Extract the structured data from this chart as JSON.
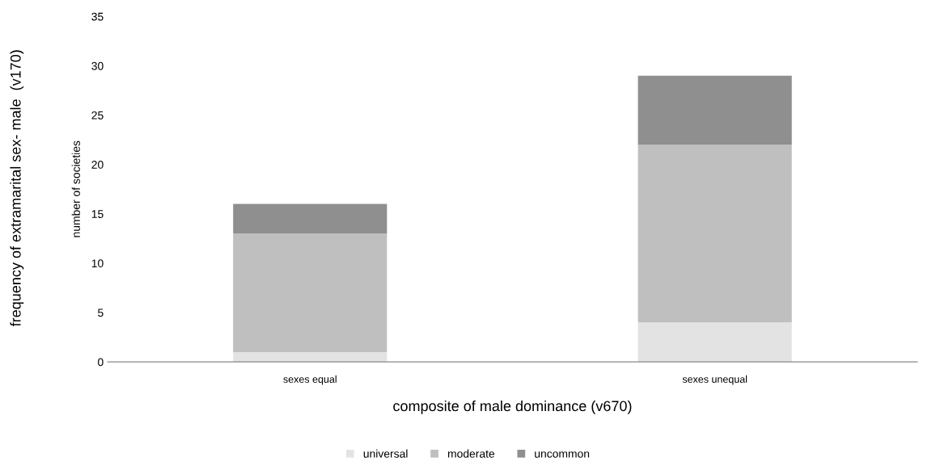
{
  "chart_data": {
    "type": "bar",
    "stacked": true,
    "categories": [
      "sexes equal",
      "sexes unequal"
    ],
    "series": [
      {
        "name": "universal",
        "color": "#e3e3e3",
        "values": [
          1,
          4
        ]
      },
      {
        "name": "moderate",
        "color": "#bfbfbf",
        "values": [
          12,
          18
        ]
      },
      {
        "name": "uncommon",
        "color": "#8f8f8f",
        "values": [
          3,
          7
        ]
      }
    ],
    "xlabel": "composite of male dominance (v670)",
    "ylabel": "number of societies",
    "annotations": [
      "frequency of extramarital sex- male  (v170)"
    ],
    "ylim": [
      0,
      35
    ],
    "yticks": [
      0,
      5,
      10,
      15,
      20,
      25,
      30,
      35
    ],
    "grid": false,
    "legend": "bottom"
  }
}
